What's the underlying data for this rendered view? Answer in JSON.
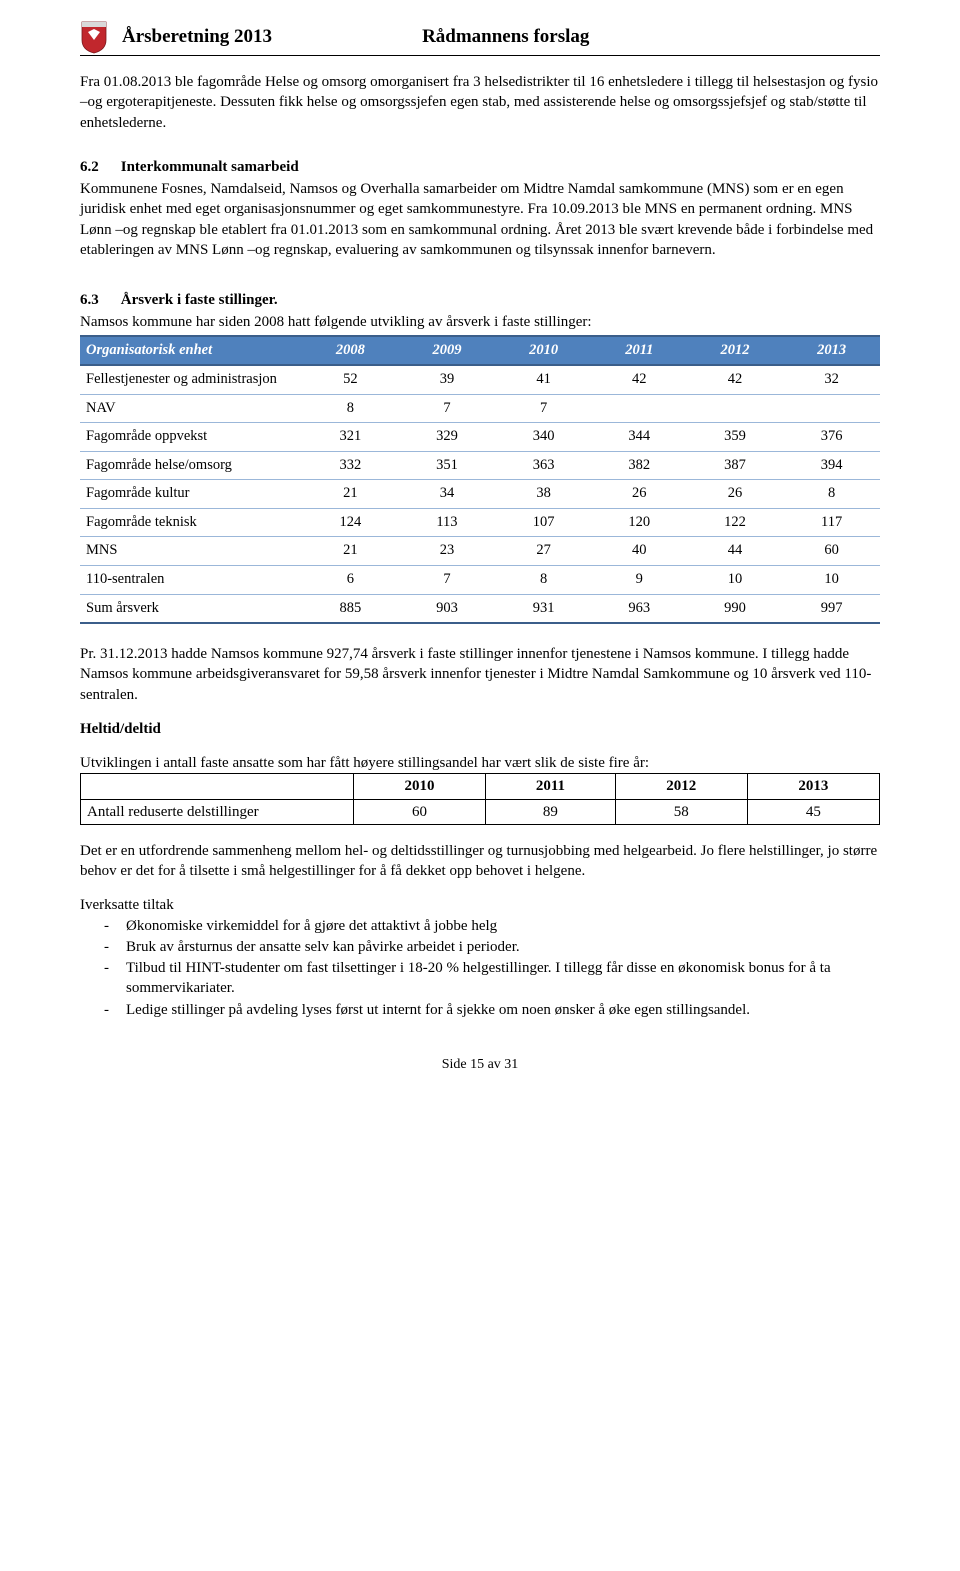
{
  "header": {
    "title_left": "Årsberetning 2013",
    "title_right": "Rådmannens forslag",
    "crest_colors": {
      "shield": "#c1272d",
      "top": "#e6e6e6",
      "detail": "#ffffff"
    }
  },
  "para1": "Fra 01.08.2013 ble fagområde Helse og omsorg omorganisert fra 3 helsedistrikter til 16 enhetsledere i tillegg til helsestasjon og fysio –og ergoterapitjeneste. Dessuten fikk helse og omsorgssjefen egen stab, med assisterende helse og omsorgssjefsjef og stab/støtte til enhetslederne.",
  "section62": {
    "num": "6.2",
    "title": "Interkommunalt samarbeid",
    "body": "Kommunene Fosnes, Namdalseid, Namsos og Overhalla samarbeider om Midtre Namdal samkommune (MNS) som er en egen juridisk enhet med eget organisasjonsnummer og eget samkommunestyre. Fra 10.09.2013 ble MNS en permanent ordning. MNS Lønn –og regnskap ble etablert fra 01.01.2013 som en samkommunal ordning. Året 2013 ble svært krevende både i forbindelse med etableringen av MNS Lønn –og regnskap, evaluering av samkommunen og tilsynssak innenfor barnevern."
  },
  "section63": {
    "num": "6.3",
    "title": "Årsverk i faste stillinger.",
    "intro": "Namsos kommune har siden 2008 hatt følgende utvikling av årsverk i faste stillinger:"
  },
  "table1": {
    "header_first": "Organisatorisk enhet",
    "years": [
      "2008",
      "2009",
      "2010",
      "2011",
      "2012",
      "2013"
    ],
    "rows": [
      {
        "label": "Fellestjenester og administrasjon",
        "vals": [
          "52",
          "39",
          "41",
          "42",
          "42",
          "32"
        ]
      },
      {
        "label": "NAV",
        "vals": [
          "8",
          "7",
          "7",
          "",
          "",
          ""
        ]
      },
      {
        "label": "Fagområde oppvekst",
        "vals": [
          "321",
          "329",
          "340",
          "344",
          "359",
          "376"
        ]
      },
      {
        "label": "Fagområde helse/omsorg",
        "vals": [
          "332",
          "351",
          "363",
          "382",
          "387",
          "394"
        ]
      },
      {
        "label": "Fagområde kultur",
        "vals": [
          "21",
          "34",
          "38",
          "26",
          "26",
          "8"
        ]
      },
      {
        "label": "Fagområde teknisk",
        "vals": [
          "124",
          "113",
          "107",
          "120",
          "122",
          "117"
        ]
      },
      {
        "label": "MNS",
        "vals": [
          "21",
          "23",
          "27",
          "40",
          "44",
          "60"
        ]
      },
      {
        "label": "110-sentralen",
        "vals": [
          "6",
          "7",
          "8",
          "9",
          "10",
          "10"
        ]
      },
      {
        "label": "Sum årsverk",
        "vals": [
          "885",
          "903",
          "931",
          "963",
          "990",
          "997"
        ]
      }
    ]
  },
  "para_pr": "Pr. 31.12.2013 hadde Namsos kommune 927,74 årsverk i faste stillinger innenfor tjenestene i Namsos kommune. I tillegg hadde Namsos kommune arbeidsgiveransvaret for 59,58 årsverk innenfor tjenester i Midtre Namdal Samkommune og 10 årsverk ved 110-sentralen.",
  "heltid_heading": "Heltid/deltid",
  "heltid_intro": "Utviklingen i antall faste ansatte som har fått høyere stillingsandel har vært slik de siste fire år:",
  "table2": {
    "years": [
      "2010",
      "2011",
      "2012",
      "2013"
    ],
    "row_label": "Antall reduserte delstillinger",
    "vals": [
      "60",
      "89",
      "58",
      "45"
    ]
  },
  "para_utfordrende": "Det er en utfordrende sammenheng mellom hel- og deltidsstillinger og turnusjobbing med helgearbeid. Jo flere helstillinger, jo større behov er det for å tilsette i små helgestillinger for å få dekket opp behovet i helgene.",
  "tiltak_heading": "Iverksatte tiltak",
  "tiltak": [
    "Økonomiske virkemiddel for å gjøre det attaktivt å jobbe helg",
    "Bruk av årsturnus der ansatte selv kan påvirke arbeidet i perioder.",
    "Tilbud til HINT-studenter om fast tilsettinger i 18-20 % helgestillinger. I tillegg får disse en økonomisk bonus for å ta sommervikariater.",
    "Ledige stillinger på avdeling lyses først ut internt for å sjekke om noen ønsker å øke egen stillingsandel."
  ],
  "footer": "Side 15 av 31"
}
